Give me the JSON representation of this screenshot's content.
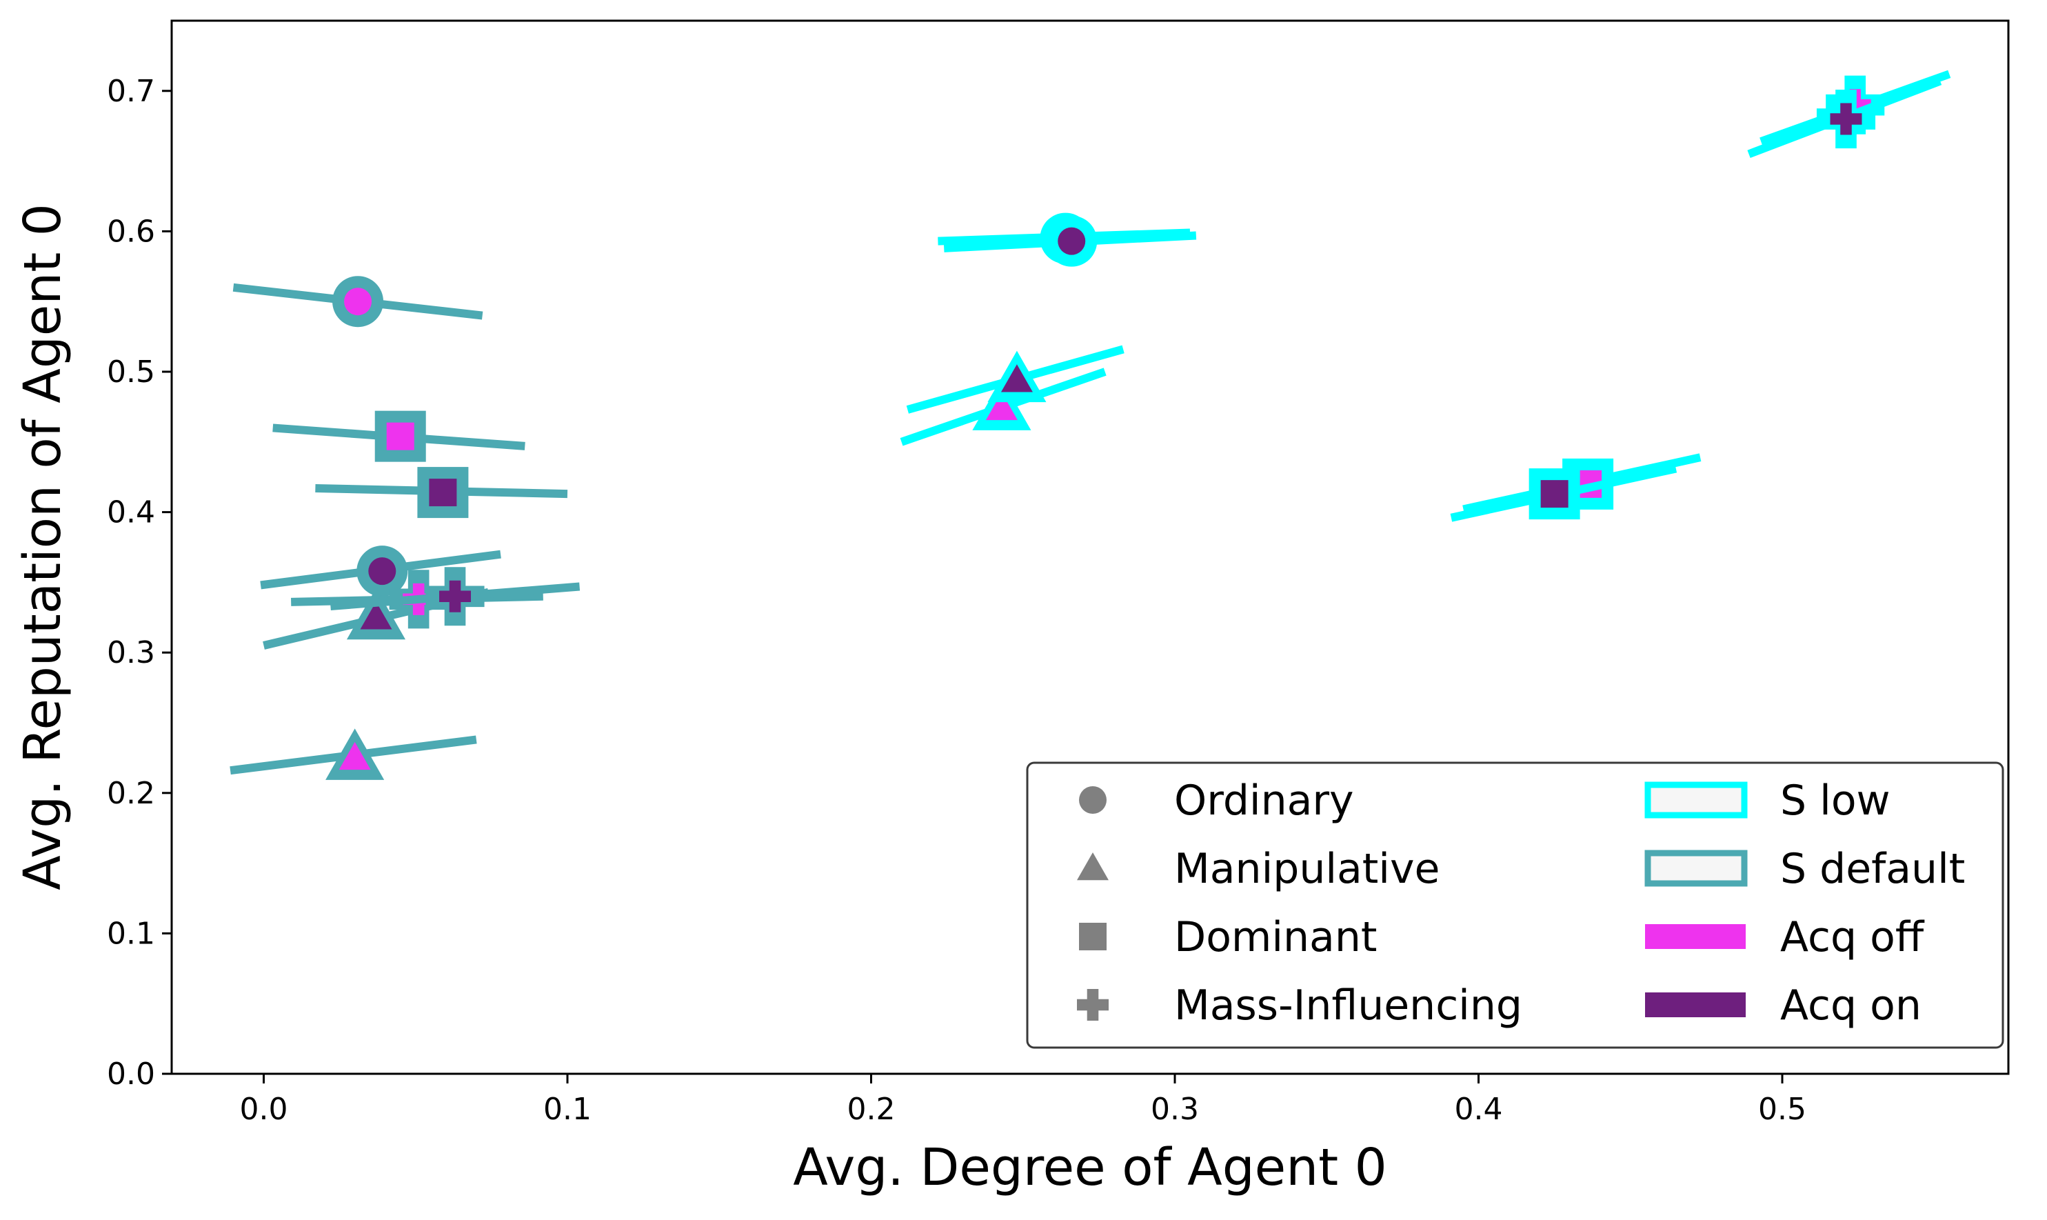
{
  "chart_data": {
    "type": "scatter",
    "xlabel": "Avg. Degree of Agent 0",
    "ylabel": "Avg. Reputation of Agent 0",
    "xlim": [
      -0.03,
      0.575
    ],
    "ylim": [
      0.0,
      0.75
    ],
    "xticks": [
      "0.0",
      "0.1",
      "0.2",
      "0.3",
      "0.4",
      "0.5"
    ],
    "yticks": [
      "0.0",
      "0.1",
      "0.2",
      "0.3",
      "0.4",
      "0.5",
      "0.6",
      "0.7"
    ],
    "grid": false,
    "legend": {
      "placement": "bottom-right",
      "shape_entries": [
        {
          "label": "Ordinary",
          "marker": "circle"
        },
        {
          "label": "Manipulative",
          "marker": "triangle"
        },
        {
          "label": "Dominant",
          "marker": "square"
        },
        {
          "label": "Mass-Influencing",
          "marker": "plus"
        }
      ],
      "edge_entries": [
        {
          "label": "S low",
          "color": "#00ffff"
        },
        {
          "label": "S default",
          "color": "#4ca9b2"
        }
      ],
      "fill_entries": [
        {
          "label": "Acq off",
          "color": "#ee33ee"
        },
        {
          "label": "Acq on",
          "color": "#6e1f7e"
        }
      ]
    },
    "colors": {
      "s_low": "#00ffff",
      "s_default": "#4ca9b2",
      "acq_off": "#ee33ee",
      "acq_on": "#6e1f7e",
      "legend_marker": "#808080"
    },
    "points": [
      {
        "type": "Ordinary",
        "s": "default",
        "acq": "off",
        "x": 0.031,
        "y": 0.55,
        "line_x": [
          -0.01,
          0.072
        ],
        "line_y": [
          0.56,
          0.54
        ]
      },
      {
        "type": "Ordinary",
        "s": "default",
        "acq": "on",
        "x": 0.039,
        "y": 0.358,
        "line_x": [
          -0.001,
          0.078
        ],
        "line_y": [
          0.348,
          0.37
        ]
      },
      {
        "type": "Dominant",
        "s": "default",
        "acq": "off",
        "x": 0.045,
        "y": 0.454,
        "line_x": [
          0.003,
          0.086
        ],
        "line_y": [
          0.46,
          0.447
        ]
      },
      {
        "type": "Dominant",
        "s": "default",
        "acq": "on",
        "x": 0.059,
        "y": 0.414,
        "line_x": [
          0.017,
          0.1
        ],
        "line_y": [
          0.417,
          0.413
        ]
      },
      {
        "type": "Manipulative",
        "s": "default",
        "acq": "off",
        "x": 0.03,
        "y": 0.225,
        "line_x": [
          -0.011,
          0.07
        ],
        "line_y": [
          0.216,
          0.238
        ]
      },
      {
        "type": "Manipulative",
        "s": "default",
        "acq": "on",
        "x": 0.037,
        "y": 0.325,
        "line_x": [
          0.0,
          0.074
        ],
        "line_y": [
          0.305,
          0.343
        ]
      },
      {
        "type": "Mass-Influencing",
        "s": "default",
        "acq": "off",
        "x": 0.051,
        "y": 0.338,
        "line_x": [
          0.009,
          0.092
        ],
        "line_y": [
          0.336,
          0.34
        ]
      },
      {
        "type": "Mass-Influencing",
        "s": "default",
        "acq": "on",
        "x": 0.063,
        "y": 0.34,
        "line_x": [
          0.022,
          0.104
        ],
        "line_y": [
          0.333,
          0.347
        ]
      },
      {
        "type": "Ordinary",
        "s": "low",
        "acq": "off",
        "x": 0.264,
        "y": 0.595,
        "line_x": [
          0.222,
          0.305
        ],
        "line_y": [
          0.593,
          0.599
        ]
      },
      {
        "type": "Ordinary",
        "s": "low",
        "acq": "on",
        "x": 0.266,
        "y": 0.593,
        "line_x": [
          0.224,
          0.307
        ],
        "line_y": [
          0.588,
          0.597
        ]
      },
      {
        "type": "Manipulative",
        "s": "low",
        "acq": "off",
        "x": 0.243,
        "y": 0.474,
        "line_x": [
          0.21,
          0.277
        ],
        "line_y": [
          0.45,
          0.5
        ]
      },
      {
        "type": "Manipulative",
        "s": "low",
        "acq": "on",
        "x": 0.248,
        "y": 0.494,
        "line_x": [
          0.212,
          0.283
        ],
        "line_y": [
          0.473,
          0.516
        ]
      },
      {
        "type": "Dominant",
        "s": "low",
        "acq": "off",
        "x": 0.436,
        "y": 0.42,
        "line_x": [
          0.395,
          0.473
        ],
        "line_y": [
          0.402,
          0.439
        ]
      },
      {
        "type": "Dominant",
        "s": "low",
        "acq": "on",
        "x": 0.425,
        "y": 0.413,
        "line_x": [
          0.391,
          0.465
        ],
        "line_y": [
          0.396,
          0.431
        ]
      },
      {
        "type": "Mass-Influencing",
        "s": "low",
        "acq": "off",
        "x": 0.524,
        "y": 0.69,
        "line_x": [
          0.493,
          0.555
        ],
        "line_y": [
          0.664,
          0.712
        ]
      },
      {
        "type": "Mass-Influencing",
        "s": "low",
        "acq": "on",
        "x": 0.521,
        "y": 0.68,
        "line_x": [
          0.489,
          0.552
        ],
        "line_y": [
          0.655,
          0.707
        ]
      }
    ]
  }
}
